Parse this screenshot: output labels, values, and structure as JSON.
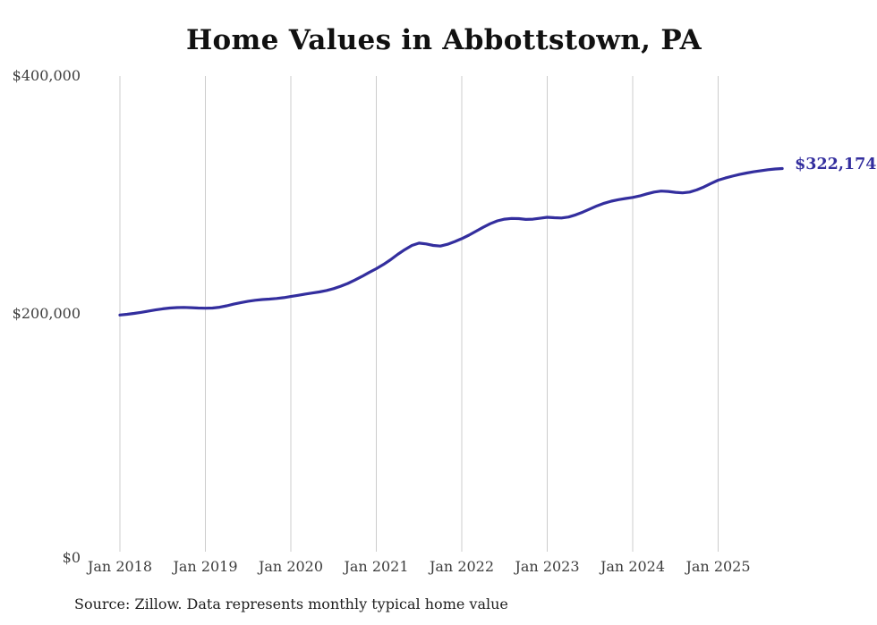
{
  "title": "Home Values in Abbottstown, PA",
  "source_note": "Source: Zillow. Data represents monthly typical home value",
  "end_label": "$322,174",
  "colors": {
    "line": "#332e9e",
    "end_label": "#332e9e",
    "grid": "#cccccc",
    "title": "#111111",
    "axis_text": "#3d3d3d",
    "background": "#ffffff"
  },
  "chart_data": {
    "type": "line",
    "title": "Home Values in Abbottstown, PA",
    "xlabel": "",
    "ylabel": "",
    "x_start": "Jan 2018",
    "x_end": "Oct 2025",
    "frequency": "monthly",
    "x_tick_labels": [
      "Jan 2018",
      "Jan 2019",
      "Jan 2020",
      "Jan 2021",
      "Jan 2022",
      "Jan 2023",
      "Jan 2024",
      "Jan 2025"
    ],
    "y_tick_labels": [
      "$0",
      "$200,000",
      "$400,000"
    ],
    "y_tick_values": [
      0,
      200000,
      400000
    ],
    "ylim": [
      0,
      400000
    ],
    "grid": "vertical-only",
    "legend": "none",
    "last_value": 322174,
    "series": [
      {
        "name": "Typical home value",
        "values": [
          199000,
          199600,
          200400,
          201300,
          202300,
          203300,
          204200,
          204900,
          205300,
          205400,
          205200,
          204900,
          204700,
          204900,
          205600,
          206800,
          208200,
          209500,
          210600,
          211400,
          212000,
          212400,
          212900,
          213600,
          214600,
          215600,
          216600,
          217500,
          218400,
          219600,
          221200,
          223200,
          225600,
          228400,
          231500,
          234800,
          238000,
          241500,
          245500,
          250000,
          254000,
          257500,
          259500,
          258800,
          257500,
          257000,
          258500,
          260700,
          263200,
          266200,
          269500,
          272800,
          275800,
          278200,
          279600,
          280200,
          280100,
          279400,
          279600,
          280400,
          281200,
          280800,
          280600,
          281400,
          283200,
          285600,
          288200,
          290800,
          293000,
          294700,
          296000,
          297000,
          297900,
          299200,
          300900,
          302400,
          303200,
          302900,
          302200,
          301700,
          302400,
          304200,
          306700,
          309600,
          312400,
          314200,
          315800,
          317200,
          318400,
          319500,
          320400,
          321200,
          321800,
          322174
        ]
      }
    ]
  }
}
